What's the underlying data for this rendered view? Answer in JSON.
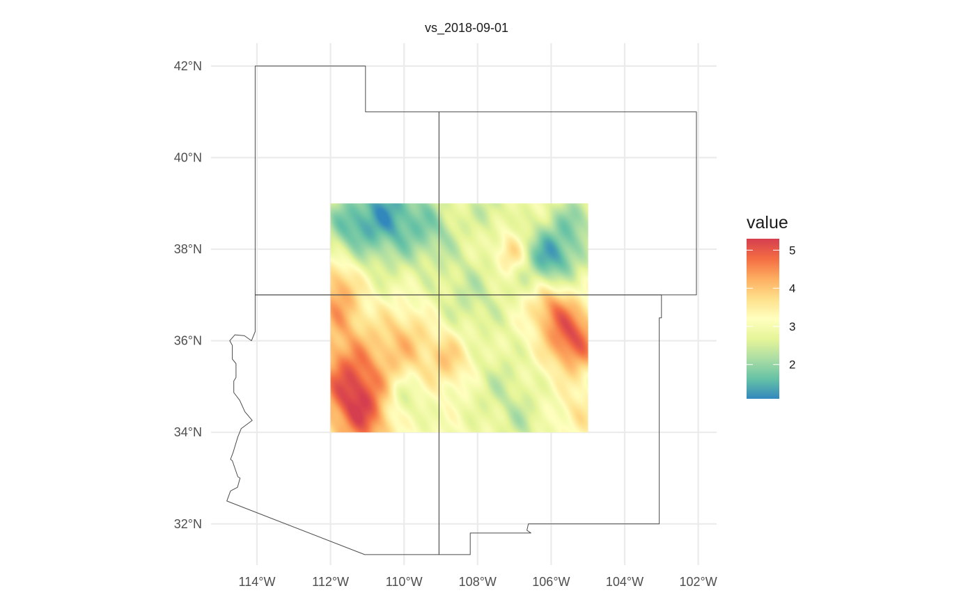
{
  "map": {
    "title": "vs_2018-09-01",
    "x_axis": {
      "ticks": [
        {
          "value": -114,
          "label": "114°W"
        },
        {
          "value": -112,
          "label": "112°W"
        },
        {
          "value": -110,
          "label": "110°W"
        },
        {
          "value": -108,
          "label": "108°W"
        },
        {
          "value": -106,
          "label": "106°W"
        },
        {
          "value": -104,
          "label": "104°W"
        },
        {
          "value": -102,
          "label": "102°W"
        }
      ],
      "range": [
        -115.25,
        -101.5
      ]
    },
    "y_axis": {
      "ticks": [
        {
          "value": 32,
          "label": "32°N"
        },
        {
          "value": 34,
          "label": "34°N"
        },
        {
          "value": 36,
          "label": "36°N"
        },
        {
          "value": 38,
          "label": "38°N"
        },
        {
          "value": 40,
          "label": "40°N"
        },
        {
          "value": 42,
          "label": "42°N"
        }
      ],
      "range": [
        31.1,
        42.5
      ]
    },
    "grid": true,
    "raster": {
      "lon_range": [
        -112,
        -105
      ],
      "lat_range": [
        34,
        39
      ],
      "value_range": [
        1.1,
        5.3
      ],
      "dominant_pattern": "low values (blue, ~1.5) in north-west and east around 37.5°N; high values (red, ~4.5–5) in south-west and east-centre; mid values (yellow-green, ~2.5–3.5) across the centre"
    },
    "states": [
      "Utah",
      "Colorado",
      "Arizona",
      "New Mexico"
    ]
  },
  "legend": {
    "title": "value",
    "ticks": [
      {
        "value": 2,
        "label": "2"
      },
      {
        "value": 3,
        "label": "3"
      },
      {
        "value": 4,
        "label": "4"
      },
      {
        "value": 5,
        "label": "5"
      }
    ],
    "colors": [
      "#3288bd",
      "#66c2a5",
      "#abdda4",
      "#e6f598",
      "#ffffbf",
      "#fee08b",
      "#fdae61",
      "#f46d43",
      "#d53e4f"
    ]
  }
}
